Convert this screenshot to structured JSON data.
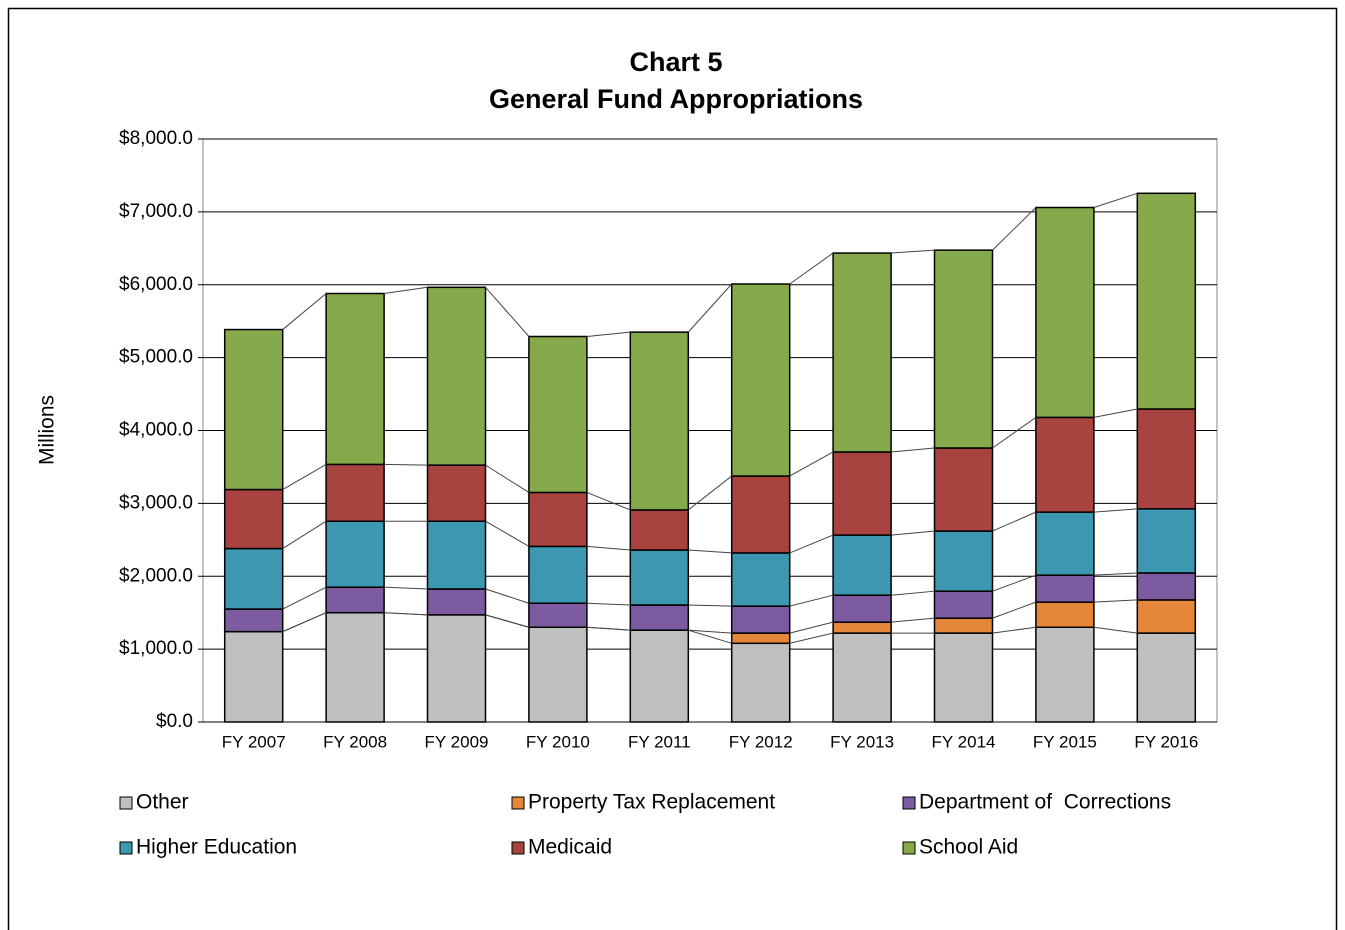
{
  "chart_data": {
    "type": "stacked_bar",
    "title": "Chart 5",
    "subtitle": "General Fund Appropriations",
    "y_label": "Millions",
    "categories": [
      "FY 2007",
      "FY 2008",
      "FY 2009",
      "FY 2010",
      "FY 2011",
      "FY 2012",
      "FY 2013",
      "FY 2014",
      "FY 2015",
      "FY 2016"
    ],
    "series": [
      {
        "name": "Other",
        "color": "#c0c0c0",
        "values": [
          1240,
          1500,
          1470,
          1300,
          1260,
          1080,
          1220,
          1220,
          1300,
          1220
        ]
      },
      {
        "name": "Property Tax Replacement",
        "color": "#e5873a",
        "values": [
          0,
          0,
          0,
          0,
          0,
          140,
          150,
          205,
          345,
          455
        ]
      },
      {
        "name": "Department of  Corrections",
        "color": "#7d5ba0",
        "values": [
          310,
          350,
          355,
          330,
          345,
          370,
          370,
          370,
          370,
          370
        ]
      },
      {
        "name": "Higher Education",
        "color": "#3d97b0",
        "values": [
          830,
          905,
          930,
          780,
          755,
          730,
          825,
          825,
          865,
          880
        ]
      },
      {
        "name": "Medicaid",
        "color": "#a94340",
        "values": [
          810,
          780,
          770,
          740,
          550,
          1055,
          1140,
          1140,
          1300,
          1370
        ]
      },
      {
        "name": "School Aid",
        "color": "#86a94b",
        "values": [
          2195,
          2345,
          2440,
          2140,
          2440,
          2635,
          2730,
          2715,
          2880,
          2960
        ]
      }
    ],
    "ylim": [
      0,
      8000
    ],
    "yticks": [
      {
        "value": 0,
        "label": "$0.0"
      },
      {
        "value": 1000,
        "label": "$1,000.0"
      },
      {
        "value": 2000,
        "label": "$2,000.0"
      },
      {
        "value": 3000,
        "label": "$3,000.0"
      },
      {
        "value": 4000,
        "label": "$4,000.0"
      },
      {
        "value": 5000,
        "label": "$5,000.0"
      },
      {
        "value": 6000,
        "label": "$6,000.0"
      },
      {
        "value": 7000,
        "label": "$7,000.0"
      },
      {
        "value": 8000,
        "label": "$8,000.0"
      }
    ],
    "grid": true
  }
}
